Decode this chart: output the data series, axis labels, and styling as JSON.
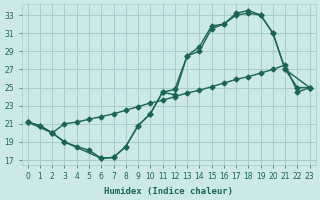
{
  "xlabel": "Humidex (Indice chaleur)",
  "bg_color": "#cce8e8",
  "grid_color": "#aacccc",
  "line_color": "#1a6655",
  "xlim": [
    -0.5,
    23.5
  ],
  "ylim": [
    16.5,
    34.2
  ],
  "xticks": [
    0,
    1,
    2,
    3,
    4,
    5,
    6,
    7,
    8,
    9,
    10,
    11,
    12,
    13,
    14,
    15,
    16,
    17,
    18,
    19,
    20,
    21,
    22,
    23
  ],
  "yticks": [
    17,
    19,
    21,
    23,
    25,
    27,
    29,
    31,
    33
  ],
  "line1_x": [
    0,
    1,
    2,
    3,
    4,
    5,
    6,
    7,
    8,
    9,
    10,
    11,
    12,
    13,
    14,
    15,
    16,
    17,
    18,
    19,
    20,
    21,
    22,
    23
  ],
  "line1_y": [
    21.2,
    20.8,
    20.0,
    19.0,
    18.5,
    18.1,
    17.2,
    17.3,
    18.5,
    20.8,
    22.1,
    24.5,
    24.2,
    28.5,
    29.0,
    31.5,
    32.0,
    33.0,
    33.2,
    33.0,
    31.0,
    27.0,
    25.0,
    25.0
  ],
  "line2_x": [
    0,
    1,
    2,
    3,
    4,
    5,
    6,
    7,
    8,
    9,
    10,
    11,
    12,
    13,
    14,
    15,
    16,
    17,
    18,
    19,
    20,
    21,
    22,
    23
  ],
  "line2_y": [
    21.2,
    20.8,
    20.0,
    21.0,
    21.2,
    21.5,
    21.8,
    22.1,
    22.5,
    22.9,
    23.3,
    23.6,
    24.0,
    24.4,
    24.7,
    25.1,
    25.5,
    25.9,
    26.2,
    26.6,
    27.0,
    27.5,
    24.5,
    25.0
  ],
  "line3_x": [
    0,
    2,
    3,
    6,
    7,
    8,
    9,
    10,
    11,
    12,
    13,
    14,
    15,
    16,
    17,
    18,
    19,
    20,
    21,
    23
  ],
  "line3_y": [
    21.2,
    20.0,
    19.0,
    17.2,
    17.3,
    18.5,
    20.8,
    22.1,
    24.5,
    24.8,
    28.5,
    29.5,
    31.8,
    32.0,
    33.2,
    33.5,
    33.0,
    31.0,
    27.0,
    25.0
  ]
}
